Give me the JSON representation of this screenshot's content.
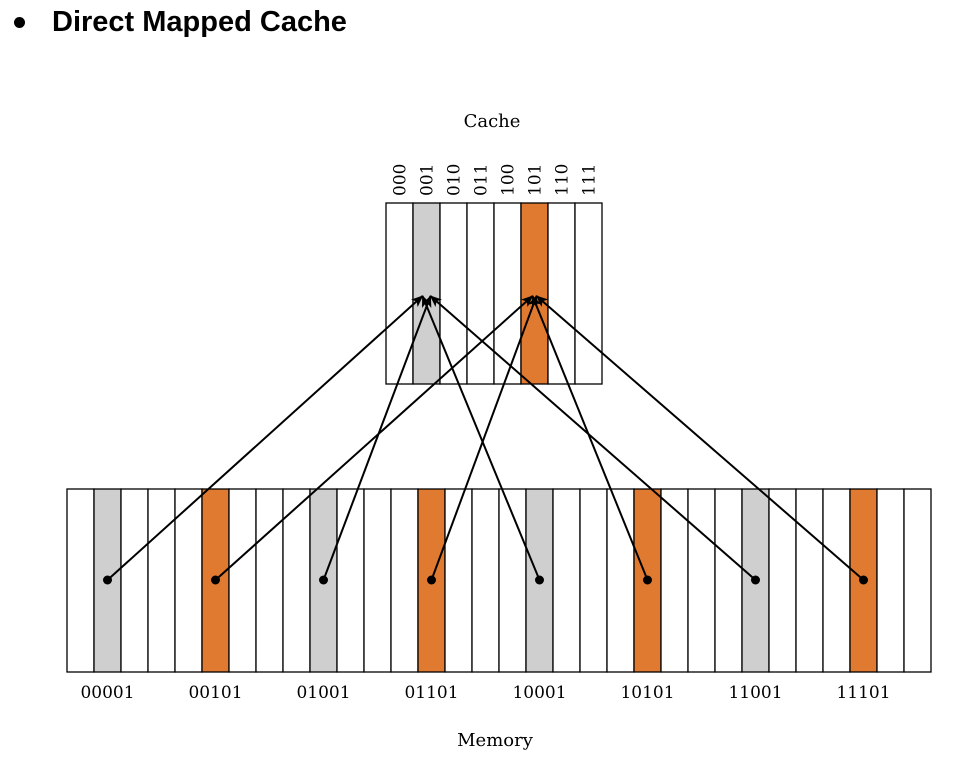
{
  "heading": "Direct Mapped Cache",
  "diagram": {
    "cache_title": "Cache",
    "memory_title": "Memory",
    "cache_indices": [
      "000",
      "001",
      "010",
      "011",
      "100",
      "101",
      "110",
      "111"
    ],
    "highlighted_cache_indices": {
      "gray": 1,
      "orange": 5
    },
    "memory_block_count": 32,
    "memory_labels": [
      {
        "text": "00001",
        "block": 1,
        "color": "gray"
      },
      {
        "text": "00101",
        "block": 5,
        "color": "orange"
      },
      {
        "text": "01001",
        "block": 9,
        "color": "gray"
      },
      {
        "text": "01101",
        "block": 13,
        "color": "orange"
      },
      {
        "text": "10001",
        "block": 17,
        "color": "gray"
      },
      {
        "text": "10101",
        "block": 21,
        "color": "orange"
      },
      {
        "text": "11001",
        "block": 25,
        "color": "gray"
      },
      {
        "text": "11101",
        "block": 29,
        "color": "orange"
      }
    ],
    "colors": {
      "gray": "#cfcfcf",
      "orange": "#e07a30",
      "outline": "#000000"
    }
  }
}
